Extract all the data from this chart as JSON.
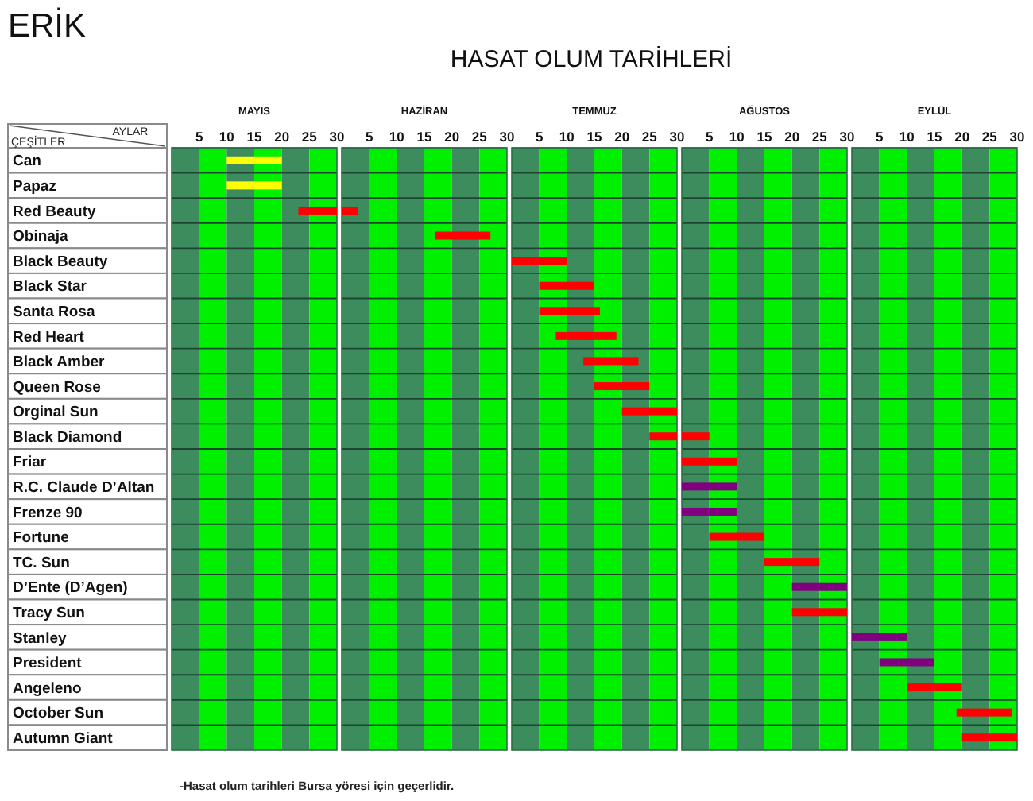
{
  "chart_data": [
    {
      "type": "other",
      "title": "ERİK",
      "subtitle": "HASAT OLUM TARİHLERİ",
      "annotations": [
        "-Hasat olum tarihleri Bursa yöresi için geçerlidir."
      ]
    },
    {
      "type": "bar",
      "orientation": "horizontal",
      "title": "MAYIS",
      "xlabel": "AYLAR",
      "ylabel": "ÇEŞİTLER",
      "categories": [
        "Can",
        "Papaz",
        "Red Beauty",
        "Obinaja",
        "Black Beauty",
        "Black Star",
        "Santa Rosa",
        "Red Heart",
        "Black Amber",
        "Queen Rose",
        "Orginal Sun",
        "Black Diamond",
        "Friar",
        "R.C. Claude D’Altan",
        "Frenze 90",
        "Fortune",
        "TC. Sun",
        "D’Ente (D’Agen)",
        "Tracy Sun",
        "Stanley",
        "President",
        "Angeleno",
        "October Sun",
        "Autumn Giant"
      ],
      "base": [
        10,
        10,
        23,
        null,
        null,
        null,
        null,
        null,
        null,
        null,
        null,
        null,
        null,
        null,
        null,
        null,
        null,
        null,
        null,
        null,
        null,
        null,
        null,
        null
      ],
      "values": [
        10,
        10,
        7,
        null,
        null,
        null,
        null,
        null,
        null,
        null,
        null,
        null,
        null,
        null,
        null,
        null,
        null,
        null,
        null,
        null,
        null,
        null,
        null,
        null
      ],
      "colors": [
        "#ffff00",
        "#ffff00",
        "#ff0000",
        null,
        null,
        null,
        null,
        null,
        null,
        null,
        null,
        null,
        null,
        null,
        null,
        null,
        null,
        null,
        null,
        null,
        null,
        null,
        null,
        null
      ],
      "xlim": [
        0,
        30
      ],
      "xticks": [
        5,
        10,
        15,
        20,
        25,
        30
      ],
      "grid": "y",
      "bands": [
        {
          "axis": "x",
          "from": 0,
          "to": 5,
          "color": "#3d8c5e"
        },
        {
          "axis": "x",
          "from": 5,
          "to": 10,
          "color": "#00f000"
        },
        {
          "axis": "x",
          "from": 10,
          "to": 15,
          "color": "#3d8c5e"
        },
        {
          "axis": "x",
          "from": 15,
          "to": 20,
          "color": "#00f000"
        },
        {
          "axis": "x",
          "from": 20,
          "to": 25,
          "color": "#3d8c5e"
        },
        {
          "axis": "x",
          "from": 25,
          "to": 30,
          "color": "#00f000"
        }
      ]
    },
    {
      "type": "bar",
      "orientation": "horizontal",
      "title": "HAZİRAN",
      "tick_labels": "x",
      "categories": [
        null,
        null,
        null,
        null,
        null,
        null,
        null,
        null,
        null,
        null,
        null,
        null,
        null,
        null,
        null,
        null,
        null,
        null,
        null,
        null,
        null,
        null,
        null,
        null
      ],
      "base": [
        null,
        null,
        0,
        17,
        null,
        null,
        null,
        null,
        null,
        null,
        null,
        null,
        null,
        null,
        null,
        null,
        null,
        null,
        null,
        null,
        null,
        null,
        null,
        null
      ],
      "values": [
        null,
        null,
        3,
        10,
        null,
        null,
        null,
        null,
        null,
        null,
        null,
        null,
        null,
        null,
        null,
        null,
        null,
        null,
        null,
        null,
        null,
        null,
        null,
        null
      ],
      "colors": [
        null,
        null,
        "#ff0000",
        "#ff0000",
        null,
        null,
        null,
        null,
        null,
        null,
        null,
        null,
        null,
        null,
        null,
        null,
        null,
        null,
        null,
        null,
        null,
        null,
        null,
        null
      ],
      "xlim": [
        0,
        30
      ],
      "xticks": [
        5,
        10,
        15,
        20,
        25,
        30
      ],
      "grid": "y",
      "bands": [
        {
          "axis": "x",
          "from": 0,
          "to": 5,
          "color": "#3d8c5e"
        },
        {
          "axis": "x",
          "from": 5,
          "to": 10,
          "color": "#00f000"
        },
        {
          "axis": "x",
          "from": 10,
          "to": 15,
          "color": "#3d8c5e"
        },
        {
          "axis": "x",
          "from": 15,
          "to": 20,
          "color": "#00f000"
        },
        {
          "axis": "x",
          "from": 20,
          "to": 25,
          "color": "#3d8c5e"
        },
        {
          "axis": "x",
          "from": 25,
          "to": 30,
          "color": "#00f000"
        }
      ]
    },
    {
      "type": "bar",
      "orientation": "horizontal",
      "title": "TEMMUZ",
      "tick_labels": "x",
      "categories": [
        null,
        null,
        null,
        null,
        null,
        null,
        null,
        null,
        null,
        null,
        null,
        null,
        null,
        null,
        null,
        null,
        null,
        null,
        null,
        null,
        null,
        null,
        null,
        null
      ],
      "base": [
        null,
        null,
        null,
        null,
        0,
        5,
        5,
        8,
        13,
        15,
        20,
        25,
        null,
        null,
        null,
        null,
        null,
        null,
        null,
        null,
        null,
        null,
        null,
        null
      ],
      "values": [
        null,
        null,
        null,
        null,
        10,
        10,
        11,
        11,
        10,
        10,
        10,
        5,
        null,
        null,
        null,
        null,
        null,
        null,
        null,
        null,
        null,
        null,
        null,
        null
      ],
      "colors": [
        null,
        null,
        null,
        null,
        "#ff0000",
        "#ff0000",
        "#ff0000",
        "#ff0000",
        "#ff0000",
        "#ff0000",
        "#ff0000",
        "#ff0000",
        null,
        null,
        null,
        null,
        null,
        null,
        null,
        null,
        null,
        null,
        null,
        null
      ],
      "xlim": [
        0,
        30
      ],
      "xticks": [
        5,
        10,
        15,
        20,
        25,
        30
      ],
      "grid": "y",
      "bands": [
        {
          "axis": "x",
          "from": 0,
          "to": 5,
          "color": "#3d8c5e"
        },
        {
          "axis": "x",
          "from": 5,
          "to": 10,
          "color": "#00f000"
        },
        {
          "axis": "x",
          "from": 10,
          "to": 15,
          "color": "#3d8c5e"
        },
        {
          "axis": "x",
          "from": 15,
          "to": 20,
          "color": "#00f000"
        },
        {
          "axis": "x",
          "from": 20,
          "to": 25,
          "color": "#3d8c5e"
        },
        {
          "axis": "x",
          "from": 25,
          "to": 30,
          "color": "#00f000"
        }
      ]
    },
    {
      "type": "bar",
      "orientation": "horizontal",
      "title": "AĞUSTOS",
      "tick_labels": "x",
      "categories": [
        null,
        null,
        null,
        null,
        null,
        null,
        null,
        null,
        null,
        null,
        null,
        null,
        null,
        null,
        null,
        null,
        null,
        null,
        null,
        null,
        null,
        null,
        null,
        null
      ],
      "base": [
        null,
        null,
        null,
        null,
        null,
        null,
        null,
        null,
        null,
        null,
        null,
        0,
        0,
        0,
        0,
        5,
        15,
        20,
        20,
        null,
        null,
        null,
        null,
        null
      ],
      "values": [
        null,
        null,
        null,
        null,
        null,
        null,
        null,
        null,
        null,
        null,
        null,
        5,
        10,
        10,
        10,
        10,
        10,
        10,
        10,
        null,
        null,
        null,
        null,
        null
      ],
      "colors": [
        null,
        null,
        null,
        null,
        null,
        null,
        null,
        null,
        null,
        null,
        null,
        "#ff0000",
        "#ff0000",
        "#800080",
        "#800080",
        "#ff0000",
        "#ff0000",
        "#800080",
        "#ff0000",
        null,
        null,
        null,
        null,
        null
      ],
      "xlim": [
        0,
        30
      ],
      "xticks": [
        5,
        10,
        15,
        20,
        25,
        30
      ],
      "grid": "y",
      "bands": [
        {
          "axis": "x",
          "from": 0,
          "to": 5,
          "color": "#3d8c5e"
        },
        {
          "axis": "x",
          "from": 5,
          "to": 10,
          "color": "#00f000"
        },
        {
          "axis": "x",
          "from": 10,
          "to": 15,
          "color": "#3d8c5e"
        },
        {
          "axis": "x",
          "from": 15,
          "to": 20,
          "color": "#00f000"
        },
        {
          "axis": "x",
          "from": 20,
          "to": 25,
          "color": "#3d8c5e"
        },
        {
          "axis": "x",
          "from": 25,
          "to": 30,
          "color": "#00f000"
        }
      ]
    },
    {
      "type": "bar",
      "orientation": "horizontal",
      "title": "EYLÜL",
      "tick_labels": "x",
      "categories": [
        null,
        null,
        null,
        null,
        null,
        null,
        null,
        null,
        null,
        null,
        null,
        null,
        null,
        null,
        null,
        null,
        null,
        null,
        null,
        null,
        null,
        null,
        null,
        null
      ],
      "base": [
        null,
        null,
        null,
        null,
        null,
        null,
        null,
        null,
        null,
        null,
        null,
        null,
        null,
        null,
        null,
        null,
        null,
        null,
        null,
        0,
        5,
        10,
        19,
        20
      ],
      "values": [
        null,
        null,
        null,
        null,
        null,
        null,
        null,
        null,
        null,
        null,
        null,
        null,
        null,
        null,
        null,
        null,
        null,
        null,
        null,
        10,
        10,
        10,
        10,
        10
      ],
      "colors": [
        null,
        null,
        null,
        null,
        null,
        null,
        null,
        null,
        null,
        null,
        null,
        null,
        null,
        null,
        null,
        null,
        null,
        null,
        null,
        "#800080",
        "#800080",
        "#ff0000",
        "#ff0000",
        "#ff0000"
      ],
      "xlim": [
        0,
        30
      ],
      "xticks": [
        5,
        10,
        15,
        20,
        25,
        30
      ],
      "grid": "y",
      "bands": [
        {
          "axis": "x",
          "from": 0,
          "to": 5,
          "color": "#3d8c5e"
        },
        {
          "axis": "x",
          "from": 5,
          "to": 10,
          "color": "#00f000"
        },
        {
          "axis": "x",
          "from": 10,
          "to": 15,
          "color": "#3d8c5e"
        },
        {
          "axis": "x",
          "from": 15,
          "to": 20,
          "color": "#00f000"
        },
        {
          "axis": "x",
          "from": 20,
          "to": 25,
          "color": "#3d8c5e"
        },
        {
          "axis": "x",
          "from": 25,
          "to": 30,
          "color": "#00f000"
        }
      ]
    }
  ]
}
